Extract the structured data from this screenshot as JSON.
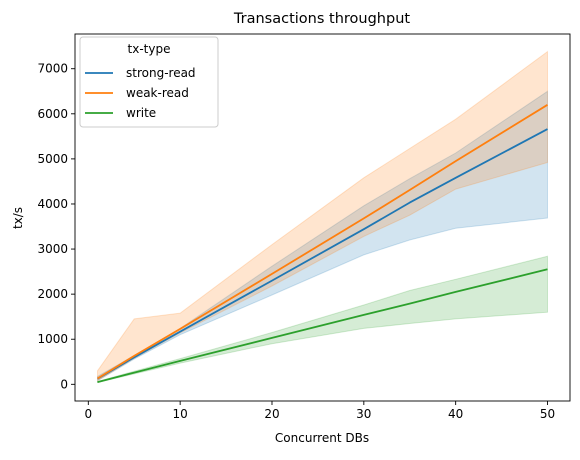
{
  "chart_data": {
    "type": "line",
    "title": "Transactions throughput",
    "xlabel": "Concurrent DBs",
    "ylabel": "tx/s",
    "xlim": [
      -1.45,
      52.45
    ],
    "ylim": [
      -370,
      7770
    ],
    "xticks": [
      0,
      10,
      20,
      30,
      40,
      50
    ],
    "yticks": [
      0,
      1000,
      2000,
      3000,
      4000,
      5000,
      6000,
      7000
    ],
    "grid": false,
    "legend": {
      "title": "tx-type",
      "placement": "top-left"
    },
    "series": [
      {
        "name": "strong-read",
        "color": "#1f77b4",
        "x": [
          1,
          5,
          10,
          20,
          30,
          35,
          40,
          50
        ],
        "y": [
          125,
          600,
          1170,
          2300,
          3440,
          4030,
          4580,
          5660
        ],
        "band_low": [
          80,
          560,
          1100,
          1980,
          2870,
          3200,
          3460,
          3690
        ],
        "band_high": [
          175,
          640,
          1240,
          2620,
          3960,
          4560,
          5130,
          6500
        ]
      },
      {
        "name": "weak-read",
        "color": "#ff7f0e",
        "x": [
          1,
          5,
          10,
          20,
          30,
          35,
          40,
          50
        ],
        "y": [
          130,
          630,
          1230,
          2450,
          3680,
          4310,
          4950,
          6200
        ],
        "band_low": [
          80,
          580,
          1140,
          2180,
          3280,
          3750,
          4330,
          4920
        ],
        "band_high": [
          300,
          1450,
          1580,
          3100,
          4580,
          5230,
          5880,
          7380
        ]
      },
      {
        "name": "write",
        "color": "#2ca02c",
        "x": [
          1,
          5,
          10,
          20,
          30,
          35,
          40,
          50
        ],
        "y": [
          50,
          260,
          520,
          1030,
          1540,
          1790,
          2050,
          2550
        ],
        "band_low": [
          40,
          230,
          470,
          900,
          1240,
          1350,
          1450,
          1600
        ],
        "band_high": [
          60,
          290,
          570,
          1150,
          1760,
          2080,
          2330,
          2840
        ]
      }
    ]
  }
}
